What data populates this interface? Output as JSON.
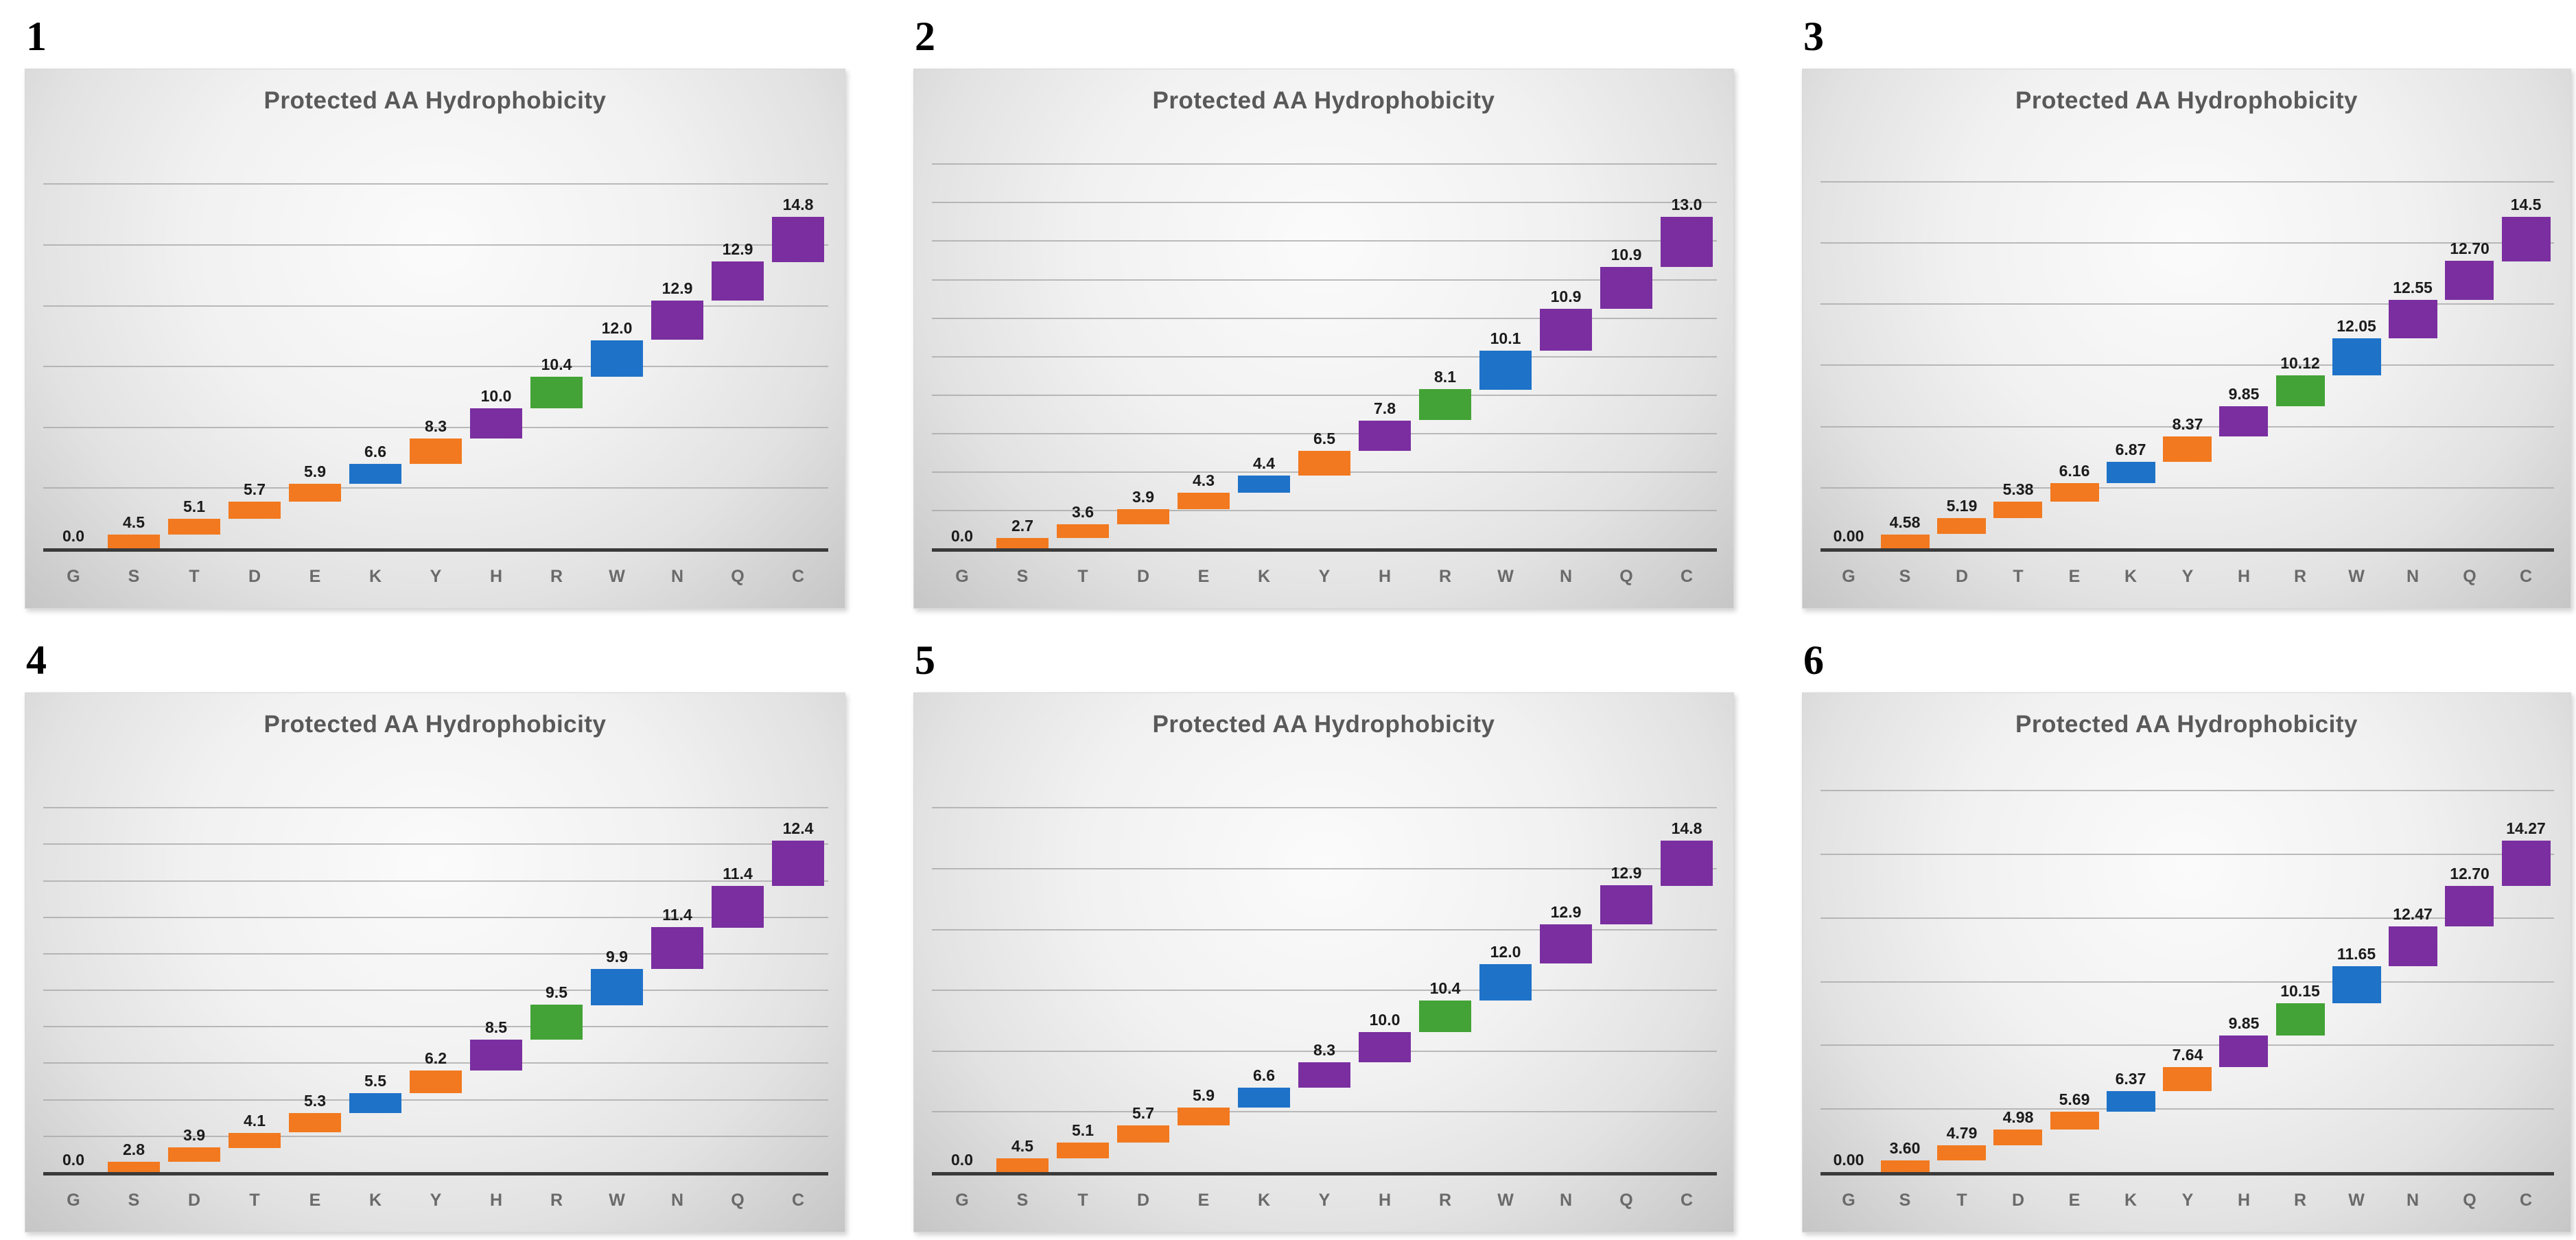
{
  "palette": {
    "orange": "#F2791F",
    "blue": "#1E72C8",
    "purple": "#7A2EA0",
    "green": "#43A336",
    "title_gray": "#595959",
    "axis_dark": "#3A3A3A",
    "gridline_gray": "#A5A5A5"
  },
  "chart_data": [
    {
      "type": "bar",
      "subtype": "waterfall",
      "number": "1",
      "title": "Protected AA Hydrophobicity",
      "categories": [
        "G",
        "S",
        "T",
        "D",
        "E",
        "K",
        "Y",
        "H",
        "R",
        "W",
        "N",
        "Q",
        "C"
      ],
      "labels": [
        "0.0",
        "4.5",
        "5.1",
        "5.7",
        "5.9",
        "6.6",
        "8.3",
        "10.0",
        "10.4",
        "12.0",
        "12.9",
        "12.9",
        "14.8"
      ],
      "values": [
        0,
        4.5,
        5.1,
        5.7,
        5.9,
        6.6,
        8.3,
        10.0,
        10.4,
        12.0,
        12.9,
        12.9,
        14.8
      ],
      "colors": [
        "none",
        "orange",
        "orange",
        "orange",
        "orange",
        "blue",
        "orange",
        "purple",
        "green",
        "blue",
        "purple",
        "purple",
        "purple"
      ],
      "gridline_step": 20,
      "grid": true,
      "legend": "none",
      "xlabel": "",
      "ylabel": ""
    },
    {
      "type": "bar",
      "subtype": "waterfall",
      "number": "2",
      "title": "Protected AA Hydrophobicity",
      "categories": [
        "G",
        "S",
        "T",
        "D",
        "E",
        "K",
        "Y",
        "H",
        "R",
        "W",
        "N",
        "Q",
        "C"
      ],
      "labels": [
        "0.0",
        "2.7",
        "3.6",
        "3.9",
        "4.3",
        "4.4",
        "6.5",
        "7.8",
        "8.1",
        "10.1",
        "10.9",
        "10.9",
        "13.0"
      ],
      "values": [
        0,
        2.7,
        3.6,
        3.9,
        4.3,
        4.4,
        6.5,
        7.8,
        8.1,
        10.1,
        10.9,
        10.9,
        13.0
      ],
      "colors": [
        "none",
        "orange",
        "orange",
        "orange",
        "orange",
        "blue",
        "orange",
        "purple",
        "green",
        "blue",
        "purple",
        "purple",
        "purple"
      ],
      "gridline_step": 10,
      "grid": true,
      "legend": "none",
      "xlabel": "",
      "ylabel": ""
    },
    {
      "type": "bar",
      "subtype": "waterfall",
      "number": "3",
      "title": "Protected AA Hydrophobicity",
      "categories": [
        "G",
        "S",
        "D",
        "T",
        "E",
        "K",
        "Y",
        "H",
        "R",
        "W",
        "N",
        "Q",
        "C"
      ],
      "labels": [
        "0.00",
        "4.58",
        "5.19",
        "5.38",
        "6.16",
        "6.87",
        "8.37",
        "9.85",
        "10.12",
        "12.05",
        "12.55",
        "12.70",
        "14.5"
      ],
      "values": [
        0,
        4.58,
        5.19,
        5.38,
        6.16,
        6.87,
        8.37,
        9.85,
        10.12,
        12.05,
        12.55,
        12.7,
        14.5
      ],
      "colors": [
        "none",
        "orange",
        "orange",
        "orange",
        "orange",
        "blue",
        "orange",
        "purple",
        "green",
        "blue",
        "purple",
        "purple",
        "purple"
      ],
      "gridline_step": 20,
      "grid": true,
      "legend": "none",
      "xlabel": "",
      "ylabel": ""
    },
    {
      "type": "bar",
      "subtype": "waterfall",
      "number": "4",
      "title": "Protected AA Hydrophobicity",
      "categories": [
        "G",
        "S",
        "D",
        "T",
        "E",
        "K",
        "Y",
        "H",
        "R",
        "W",
        "N",
        "Q",
        "C"
      ],
      "labels": [
        "0.0",
        "2.8",
        "3.9",
        "4.1",
        "5.3",
        "5.5",
        "6.2",
        "8.5",
        "9.5",
        "9.9",
        "11.4",
        "11.4",
        "12.4"
      ],
      "values": [
        0,
        2.8,
        3.9,
        4.1,
        5.3,
        5.5,
        6.2,
        8.5,
        9.5,
        9.9,
        11.4,
        11.4,
        12.4
      ],
      "colors": [
        "none",
        "orange",
        "orange",
        "orange",
        "orange",
        "blue",
        "orange",
        "purple",
        "green",
        "blue",
        "purple",
        "purple",
        "purple"
      ],
      "gridline_step": 10,
      "grid": true,
      "legend": "none",
      "xlabel": "",
      "ylabel": ""
    },
    {
      "type": "bar",
      "subtype": "waterfall",
      "number": "5",
      "title": "Protected AA Hydrophobicity",
      "categories": [
        "G",
        "S",
        "T",
        "D",
        "E",
        "K",
        "Y",
        "H",
        "R",
        "W",
        "N",
        "Q",
        "C"
      ],
      "labels": [
        "0.0",
        "4.5",
        "5.1",
        "5.7",
        "5.9",
        "6.6",
        "8.3",
        "10.0",
        "10.4",
        "12.0",
        "12.9",
        "12.9",
        "14.8"
      ],
      "values": [
        0,
        4.5,
        5.1,
        5.7,
        5.9,
        6.6,
        8.3,
        10.0,
        10.4,
        12.0,
        12.9,
        12.9,
        14.8
      ],
      "colors": [
        "none",
        "orange",
        "orange",
        "orange",
        "orange",
        "blue",
        "purple",
        "purple",
        "green",
        "blue",
        "purple",
        "purple",
        "purple"
      ],
      "gridline_step": 20,
      "grid": true,
      "legend": "none",
      "xlabel": "",
      "ylabel": ""
    },
    {
      "type": "bar",
      "subtype": "waterfall",
      "number": "6",
      "title": "Protected AA Hydrophobicity",
      "categories": [
        "G",
        "S",
        "T",
        "D",
        "E",
        "K",
        "Y",
        "H",
        "R",
        "W",
        "N",
        "Q",
        "C"
      ],
      "labels": [
        "0.00",
        "3.60",
        "4.79",
        "4.98",
        "5.69",
        "6.37",
        "7.64",
        "9.85",
        "10.15",
        "11.65",
        "12.47",
        "12.70",
        "14.27"
      ],
      "values": [
        0,
        3.6,
        4.79,
        4.98,
        5.69,
        6.37,
        7.64,
        9.85,
        10.15,
        11.65,
        12.47,
        12.7,
        14.27
      ],
      "colors": [
        "none",
        "orange",
        "orange",
        "orange",
        "orange",
        "blue",
        "orange",
        "purple",
        "green",
        "blue",
        "purple",
        "purple",
        "purple"
      ],
      "gridline_step": 20,
      "grid": true,
      "legend": "none",
      "xlabel": "",
      "ylabel": ""
    }
  ]
}
